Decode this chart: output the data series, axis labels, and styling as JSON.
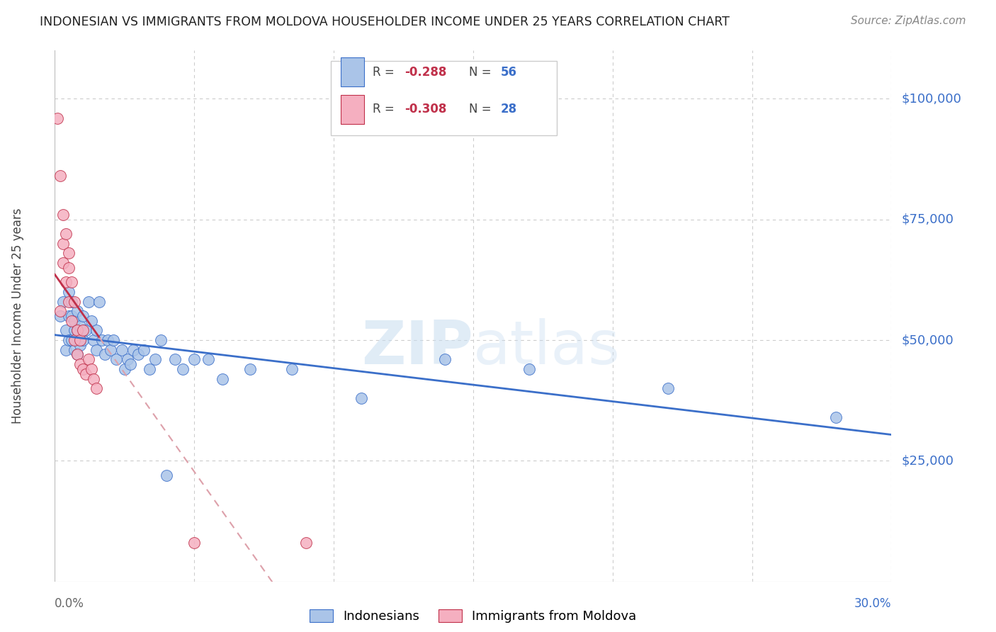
{
  "title": "INDONESIAN VS IMMIGRANTS FROM MOLDOVA HOUSEHOLDER INCOME UNDER 25 YEARS CORRELATION CHART",
  "source": "Source: ZipAtlas.com",
  "ylabel": "Householder Income Under 25 years",
  "background_color": "#ffffff",
  "grid_color": "#cccccc",
  "indonesian_color": "#aac4e8",
  "moldovan_color": "#f5afc0",
  "indonesian_line_color": "#3b6fc9",
  "moldovan_line_color": "#c0304a",
  "moldovan_dash_color": "#dda0aa",
  "indonesian_label": "Indonesians",
  "moldovan_label": "Immigrants from Moldova",
  "ylim": [
    0,
    110000
  ],
  "xlim": [
    0.0,
    0.3
  ],
  "indonesian_scatter_x": [
    0.002,
    0.003,
    0.004,
    0.004,
    0.005,
    0.005,
    0.005,
    0.006,
    0.006,
    0.006,
    0.007,
    0.007,
    0.007,
    0.008,
    0.008,
    0.008,
    0.009,
    0.009,
    0.01,
    0.01,
    0.011,
    0.012,
    0.013,
    0.014,
    0.015,
    0.015,
    0.016,
    0.017,
    0.018,
    0.019,
    0.02,
    0.021,
    0.022,
    0.024,
    0.025,
    0.026,
    0.027,
    0.028,
    0.03,
    0.032,
    0.034,
    0.036,
    0.038,
    0.04,
    0.043,
    0.046,
    0.05,
    0.055,
    0.06,
    0.07,
    0.085,
    0.11,
    0.14,
    0.17,
    0.22,
    0.28
  ],
  "indonesian_scatter_y": [
    55000,
    58000,
    52000,
    48000,
    50000,
    55000,
    60000,
    50000,
    55000,
    58000,
    52000,
    48000,
    54000,
    47000,
    52000,
    56000,
    49000,
    53000,
    50000,
    55000,
    52000,
    58000,
    54000,
    50000,
    52000,
    48000,
    58000,
    50000,
    47000,
    50000,
    48000,
    50000,
    46000,
    48000,
    44000,
    46000,
    45000,
    48000,
    47000,
    48000,
    44000,
    46000,
    50000,
    22000,
    46000,
    44000,
    46000,
    46000,
    42000,
    44000,
    44000,
    38000,
    46000,
    44000,
    40000,
    34000
  ],
  "moldovan_scatter_x": [
    0.001,
    0.002,
    0.002,
    0.003,
    0.003,
    0.003,
    0.004,
    0.004,
    0.005,
    0.005,
    0.005,
    0.006,
    0.006,
    0.007,
    0.007,
    0.008,
    0.008,
    0.009,
    0.009,
    0.01,
    0.01,
    0.011,
    0.012,
    0.013,
    0.014,
    0.015,
    0.05,
    0.09
  ],
  "moldovan_scatter_y": [
    96000,
    84000,
    56000,
    76000,
    70000,
    66000,
    72000,
    62000,
    68000,
    58000,
    65000,
    54000,
    62000,
    50000,
    58000,
    47000,
    52000,
    45000,
    50000,
    44000,
    52000,
    43000,
    46000,
    44000,
    42000,
    40000,
    8000,
    8000
  ]
}
